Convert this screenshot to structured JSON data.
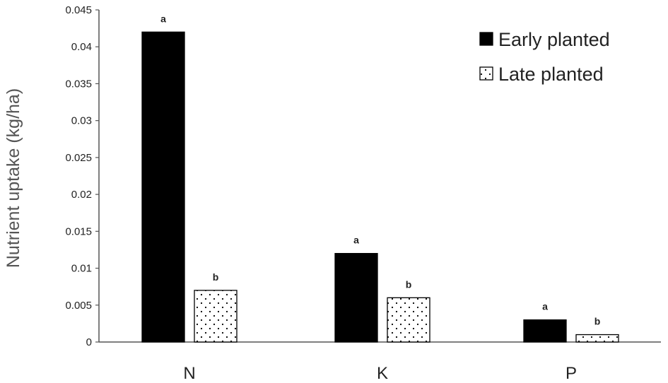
{
  "chart_data": {
    "type": "bar",
    "title": "",
    "xlabel": "",
    "ylabel": "Nutrient uptake (kg/ha)",
    "ylim": [
      0,
      0.045
    ],
    "yticks": [
      0,
      0.005,
      0.01,
      0.015,
      0.02,
      0.025,
      0.03,
      0.035,
      0.04,
      0.045
    ],
    "ytick_labels": [
      "0",
      "0.005",
      "0.01",
      "0.015",
      "0.02",
      "0.025",
      "0.03",
      "0.035",
      "0.04",
      "0.045"
    ],
    "categories": [
      "N",
      "K",
      "P"
    ],
    "grid": false,
    "legend_position": "top-right",
    "series": [
      {
        "name": "Early planted",
        "fill": "solid",
        "color": "#000000",
        "values": [
          0.042,
          0.012,
          0.003
        ],
        "significance": [
          "a",
          "a",
          "a"
        ]
      },
      {
        "name": "Late planted",
        "fill": "dotted",
        "color": "#ffffff",
        "values": [
          0.007,
          0.006,
          0.001
        ],
        "significance": [
          "b",
          "b",
          "b"
        ]
      }
    ]
  }
}
